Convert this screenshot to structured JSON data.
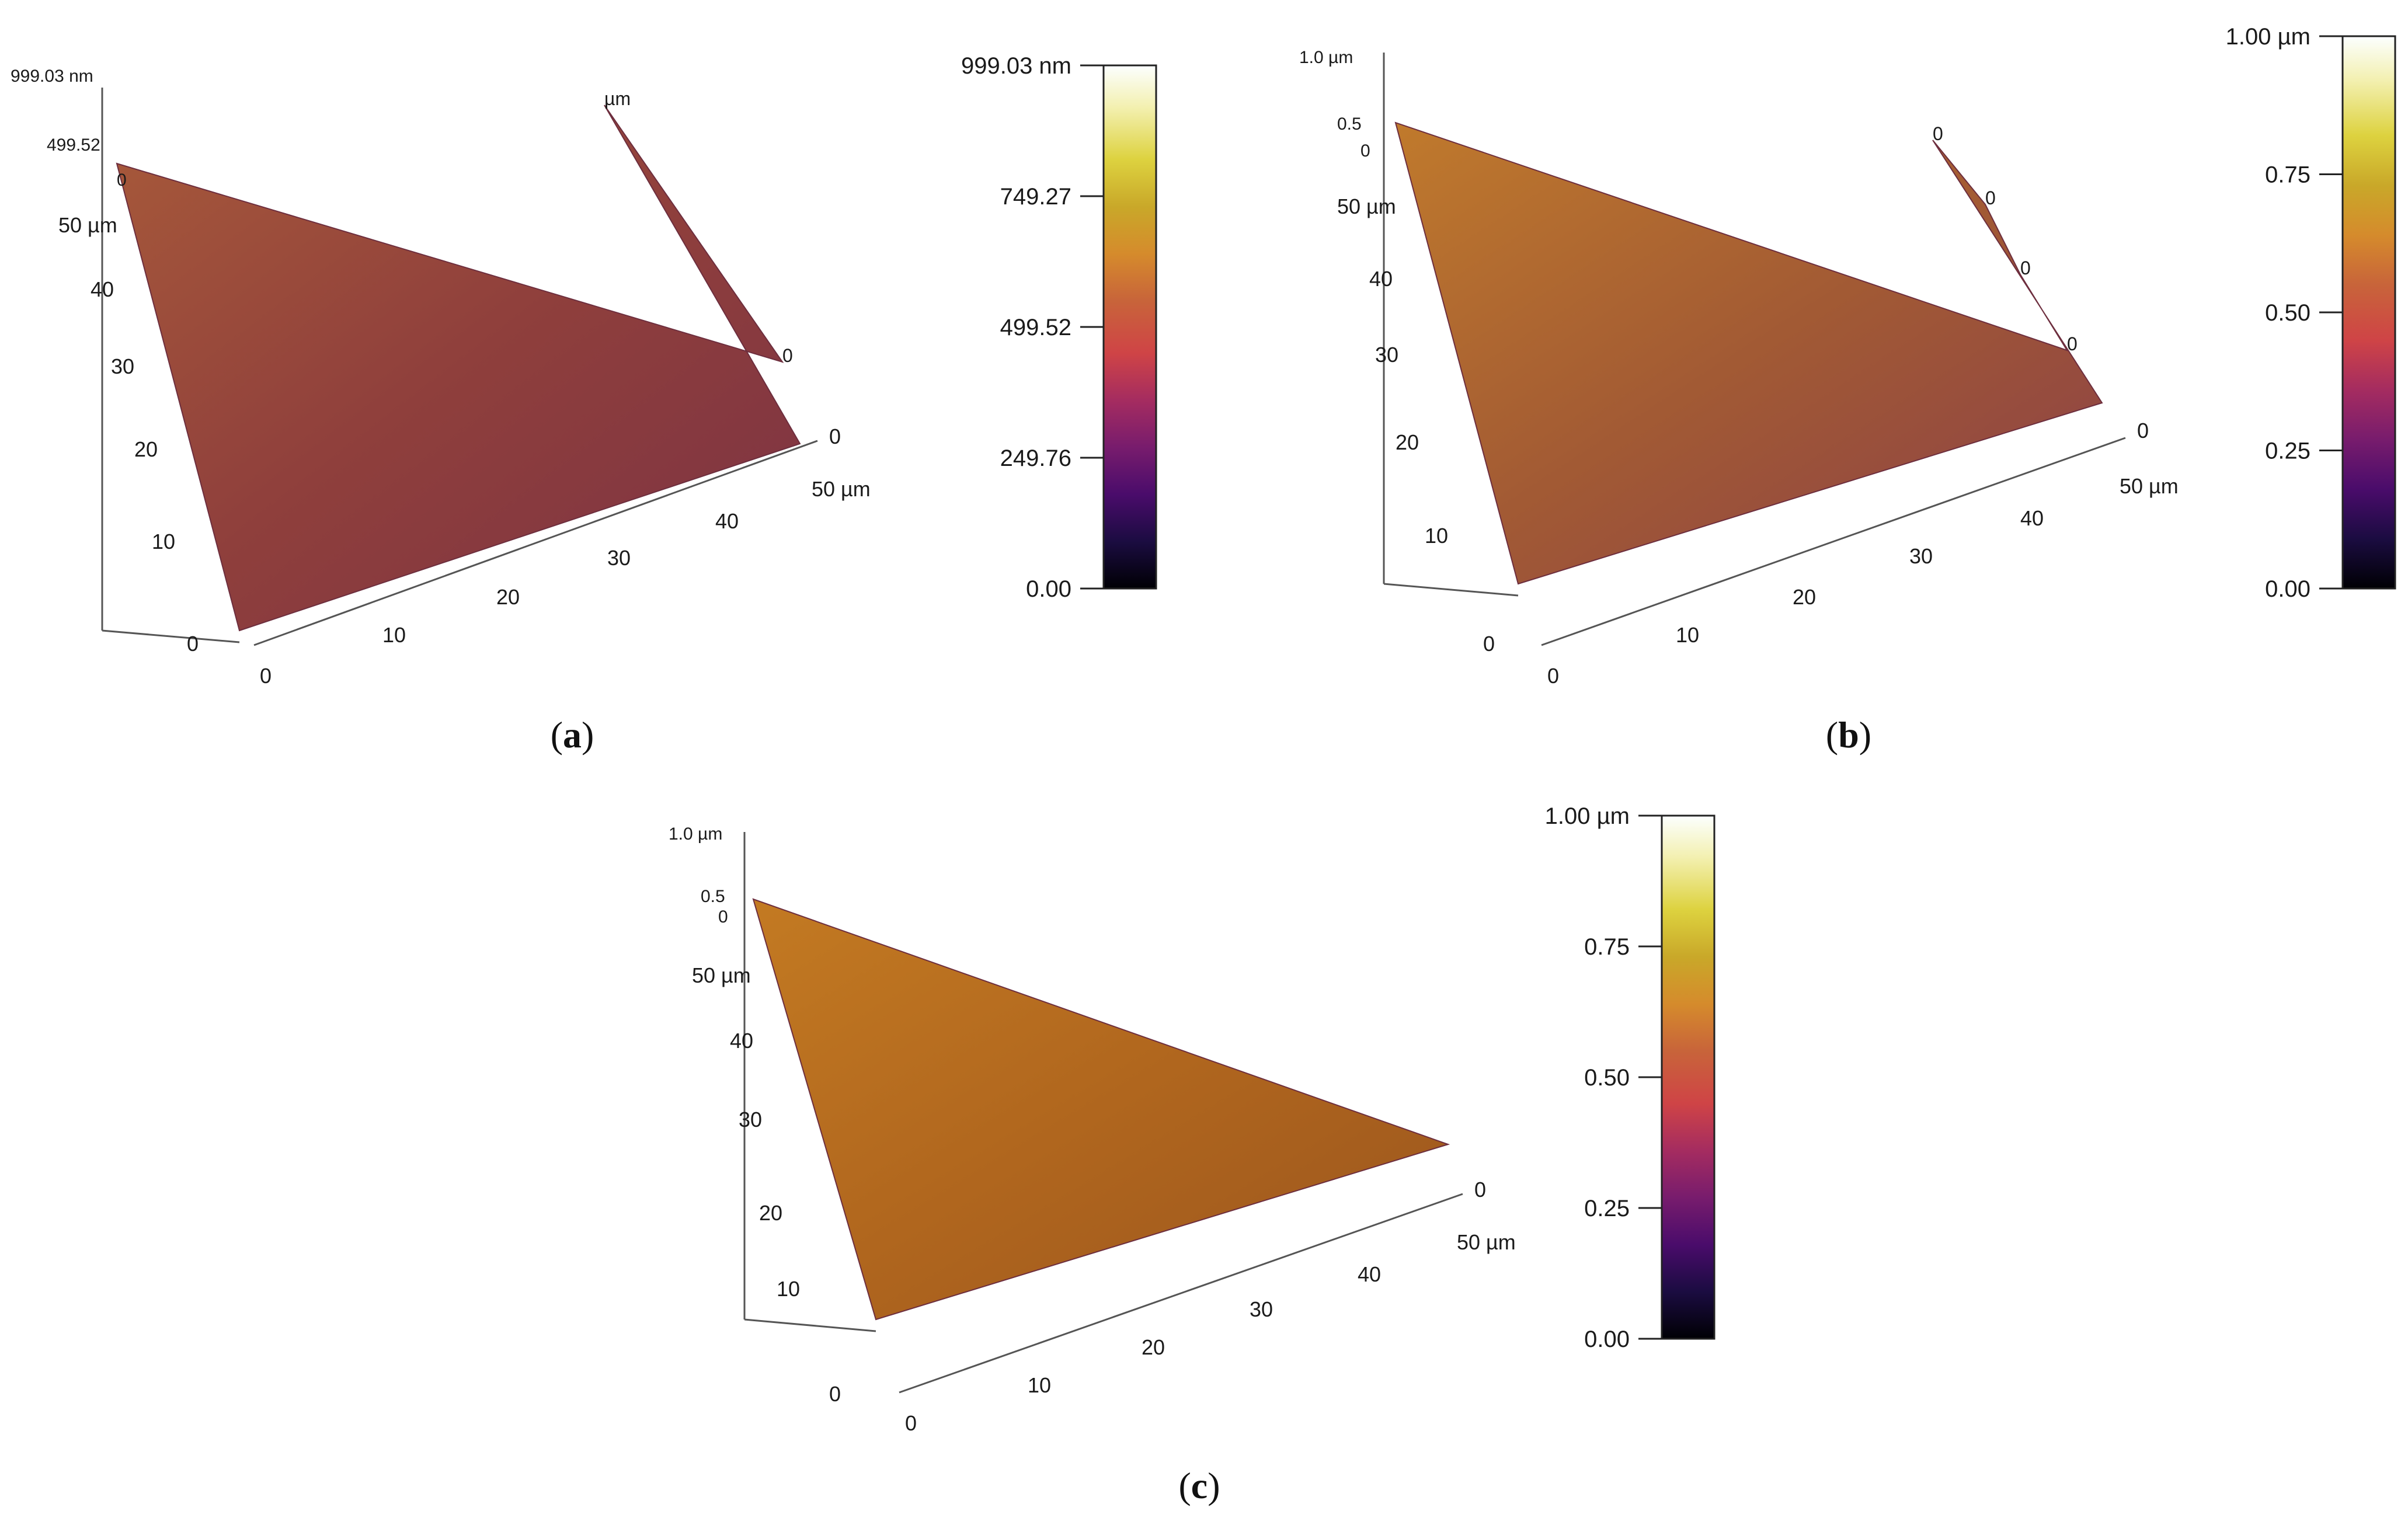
{
  "panels": [
    {
      "id": "a",
      "caption_letter": "a",
      "surface": {
        "z_labels": [
          "999.03 nm",
          "499.52",
          "0"
        ],
        "y_labels": [
          "50 µm",
          "40",
          "30",
          "20",
          "10",
          "0"
        ],
        "x_labels": [
          "0",
          "10",
          "20",
          "30",
          "40",
          "50 µm"
        ],
        "x_far_label": "0",
        "back_edge_labels": [
          "µm",
          "0"
        ]
      },
      "colorbar": {
        "ticks": [
          "999.03 nm",
          "749.27",
          "499.52",
          "249.76",
          "0.00"
        ],
        "tick_values": [
          999.03,
          749.27,
          499.52,
          249.76,
          0.0
        ]
      }
    },
    {
      "id": "b",
      "caption_letter": "b",
      "surface": {
        "z_labels": [
          "1.0 µm",
          "0.5",
          "0"
        ],
        "y_labels": [
          "50 µm",
          "40",
          "30",
          "20",
          "10",
          "0"
        ],
        "x_labels": [
          "0",
          "10",
          "20",
          "30",
          "40",
          "50 µm"
        ],
        "x_far_label": "0",
        "back_edge_labels": [
          "0",
          "0",
          "0",
          "0"
        ]
      },
      "colorbar": {
        "ticks": [
          "1.00 µm",
          "0.75",
          "0.50",
          "0.25",
          "0.00"
        ],
        "tick_values": [
          1.0,
          0.75,
          0.5,
          0.25,
          0.0
        ]
      }
    },
    {
      "id": "c",
      "caption_letter": "c",
      "surface": {
        "z_labels": [
          "1.0 µm",
          "0.5",
          "0"
        ],
        "y_labels": [
          "50 µm",
          "40",
          "30",
          "20",
          "10",
          "0"
        ],
        "x_labels": [
          "0",
          "10",
          "20",
          "30",
          "40",
          "50 µm"
        ],
        "x_far_label": "0",
        "back_edge_labels": []
      },
      "colorbar": {
        "ticks": [
          "1.00 µm",
          "0.75",
          "0.50",
          "0.25",
          "0.00"
        ],
        "tick_values": [
          1.0,
          0.75,
          0.5,
          0.25,
          0.0
        ]
      }
    }
  ],
  "colormap": [
    "#000004",
    "#1b0c41",
    "#4a0c6b",
    "#781c6d",
    "#a52c60",
    "#cf4446",
    "#c8643a",
    "#d58b2c",
    "#c9a829",
    "#ddd23f",
    "#f3f0b0",
    "#fcffff"
  ],
  "surface_colors": {
    "a": "#9a4a38",
    "b": "#b06a2e",
    "c": "#b4681e"
  }
}
